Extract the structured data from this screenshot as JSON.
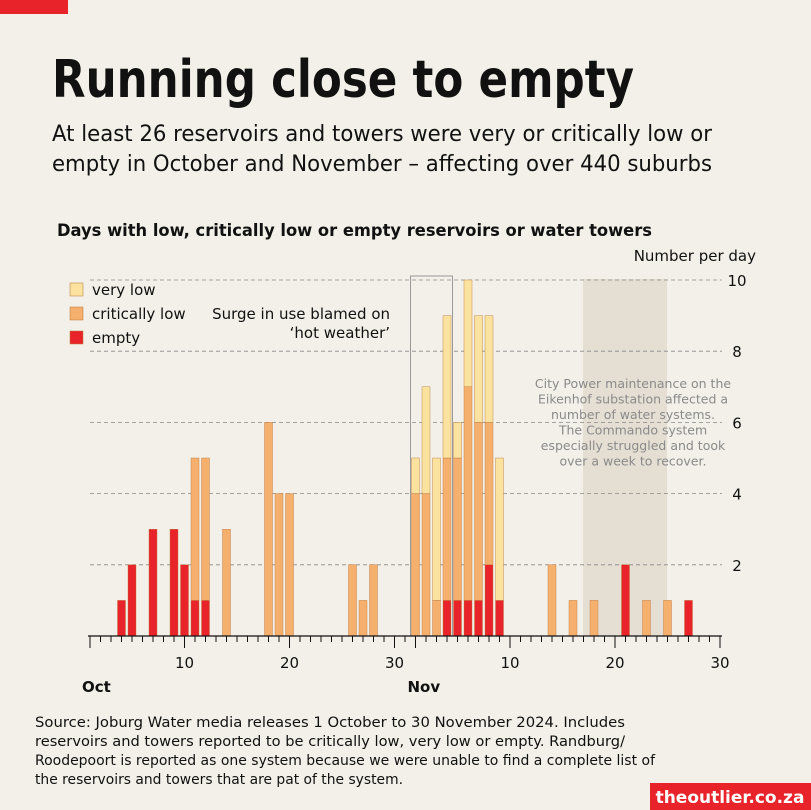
{
  "brand": "theoutlier.co.za",
  "chart_data": {
    "type": "stacked_bar",
    "title": "Running close to empty",
    "subtitle": [
      "At least 26 reservoirs and towers were very or critically low or",
      "empty in October and November – affecting over 440 suburbs"
    ],
    "chart_title": "Days with low, critically low or empty reservoirs or water towers",
    "y_label": "Number per day",
    "categories": [
      "Oct",
      null,
      null,
      null,
      null,
      null,
      null,
      null,
      null,
      "10",
      null,
      null,
      null,
      null,
      null,
      null,
      null,
      null,
      null,
      "20",
      null,
      null,
      null,
      null,
      null,
      null,
      null,
      null,
      null,
      "30",
      null,
      "Nov",
      null,
      null,
      null,
      null,
      null,
      null,
      null,
      null,
      "10",
      null,
      null,
      null,
      null,
      null,
      null,
      null,
      null,
      null,
      "20",
      null,
      null,
      null,
      null,
      null,
      null,
      null,
      null,
      null,
      "30"
    ],
    "series": [
      {
        "name": "very low",
        "color": "#fbe29e",
        "values": [
          0,
          0,
          0,
          0,
          0,
          0,
          0,
          0,
          0,
          0,
          0,
          0,
          0,
          0,
          0,
          0,
          0,
          0,
          0,
          0,
          0,
          0,
          0,
          0,
          0,
          0,
          0,
          0,
          0,
          0,
          0,
          1,
          3,
          4,
          4,
          1,
          3,
          3,
          3,
          4,
          0,
          0,
          0,
          0,
          0,
          0,
          0,
          0,
          0,
          0,
          0,
          0,
          0,
          0,
          0,
          0,
          0,
          0,
          0,
          0,
          0
        ]
      },
      {
        "name": "critically low",
        "color": "#f6b06e",
        "values": [
          0,
          0,
          0,
          0,
          0,
          0,
          0,
          0,
          0,
          0,
          4,
          4,
          0,
          3,
          0,
          0,
          0,
          6,
          4,
          4,
          0,
          0,
          0,
          0,
          0,
          2,
          1,
          2,
          0,
          0,
          0,
          4,
          4,
          1,
          4,
          4,
          6,
          5,
          4,
          0,
          0,
          0,
          0,
          0,
          2,
          0,
          1,
          0,
          1,
          0,
          0,
          0,
          0,
          1,
          0,
          1,
          0,
          0,
          0,
          0,
          0
        ]
      },
      {
        "name": "empty",
        "color": "#e8242a",
        "values": [
          0,
          0,
          0,
          1,
          2,
          0,
          3,
          0,
          3,
          2,
          1,
          1,
          0,
          0,
          0,
          0,
          0,
          0,
          0,
          0,
          0,
          0,
          0,
          0,
          0,
          0,
          0,
          0,
          0,
          0,
          0,
          0,
          0,
          0,
          1,
          1,
          1,
          1,
          2,
          1,
          0,
          0,
          0,
          0,
          0,
          0,
          0,
          0,
          0,
          0,
          0,
          2,
          0,
          0,
          0,
          0,
          0,
          1,
          0,
          0,
          0
        ]
      }
    ],
    "ylim": [
      0,
      10
    ],
    "yticks": [
      2,
      4,
      6,
      8,
      10
    ],
    "grid": true,
    "annotations": [
      "Surge in use blamed on",
      "‘hot weather’"
    ],
    "shaded_note": [
      "City Power maintenance on the",
      "Eikenhof substation affected a",
      "number of water systems.",
      "The Commando system",
      "especially struggled and took",
      "over a week to recover."
    ],
    "source": [
      "Source: Joburg Water media releases 1 October to 30 November 2024. Includes",
      "reservoirs and towers reported to be critically low, very low or empty. Randburg/",
      "Roodepoort is reported as one system because we were unable to find a complete list of",
      "the reservoirs and towers that are pat of the system."
    ]
  }
}
